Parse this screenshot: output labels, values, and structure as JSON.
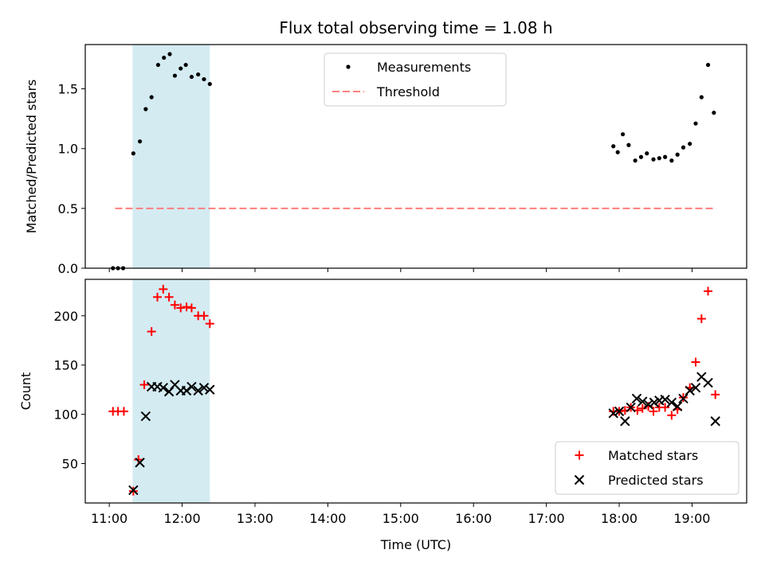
{
  "chart_data": {
    "type": "scatter",
    "title": "Flux total observing time = 1.08 h",
    "xlabel": "Time (UTC)",
    "x_ticks": [
      "11:00",
      "12:00",
      "13:00",
      "14:00",
      "15:00",
      "16:00",
      "17:00",
      "18:00",
      "19:00"
    ],
    "xlim_hours": [
      10.67,
      19.75
    ],
    "shaded_interval_hours": [
      11.32,
      12.38
    ],
    "shade_color": "#add8e6",
    "panels": [
      {
        "ylabel": "Matched/Predicted stars",
        "ylim": [
          0,
          1.87
        ],
        "y_ticks": [
          0.0,
          0.5,
          1.0,
          1.5
        ],
        "y_tick_labels": [
          "0.0",
          "0.5",
          "1.0",
          "1.5"
        ],
        "legend_position": "top-center",
        "series": [
          {
            "name": "Measurements",
            "marker": "dot",
            "color": "#000000",
            "points": [
              [
                11.05,
                0.0
              ],
              [
                11.12,
                0.0
              ],
              [
                11.19,
                0.0
              ],
              [
                11.33,
                0.96
              ],
              [
                11.42,
                1.06
              ],
              [
                11.5,
                1.33
              ],
              [
                11.58,
                1.43
              ],
              [
                11.67,
                1.7
              ],
              [
                11.75,
                1.76
              ],
              [
                11.83,
                1.79
              ],
              [
                11.9,
                1.61
              ],
              [
                11.98,
                1.67
              ],
              [
                12.05,
                1.7
              ],
              [
                12.13,
                1.6
              ],
              [
                12.22,
                1.62
              ],
              [
                12.3,
                1.58
              ],
              [
                12.38,
                1.54
              ],
              [
                17.92,
                1.02
              ],
              [
                17.98,
                0.97
              ],
              [
                18.05,
                1.12
              ],
              [
                18.13,
                1.03
              ],
              [
                18.22,
                0.9
              ],
              [
                18.3,
                0.93
              ],
              [
                18.38,
                0.96
              ],
              [
                18.47,
                0.91
              ],
              [
                18.55,
                0.92
              ],
              [
                18.63,
                0.93
              ],
              [
                18.72,
                0.9
              ],
              [
                18.8,
                0.95
              ],
              [
                18.88,
                1.01
              ],
              [
                18.97,
                1.04
              ],
              [
                19.05,
                1.21
              ],
              [
                19.13,
                1.43
              ],
              [
                19.22,
                1.7
              ],
              [
                19.3,
                1.3
              ]
            ]
          },
          {
            "name": "Threshold",
            "marker": "dashed-line",
            "color": "#ff7f7f",
            "x": [
              11.08,
              19.33
            ],
            "y": 0.5
          }
        ]
      },
      {
        "ylabel": "Count",
        "ylim": [
          10,
          237
        ],
        "y_ticks": [
          50,
          100,
          150,
          200
        ],
        "y_tick_labels": [
          "50",
          "100",
          "150",
          "200"
        ],
        "legend_position": "bottom-right",
        "series": [
          {
            "name": "Matched stars",
            "marker": "plus",
            "color": "#ff0000",
            "points": [
              [
                11.05,
                103
              ],
              [
                11.12,
                103
              ],
              [
                11.2,
                103
              ],
              [
                11.33,
                22
              ],
              [
                11.4,
                54
              ],
              [
                11.48,
                130
              ],
              [
                11.58,
                184
              ],
              [
                11.66,
                219
              ],
              [
                11.74,
                227
              ],
              [
                11.82,
                219
              ],
              [
                11.9,
                211
              ],
              [
                11.98,
                208
              ],
              [
                12.06,
                209
              ],
              [
                12.13,
                208
              ],
              [
                12.22,
                200
              ],
              [
                12.3,
                200
              ],
              [
                12.38,
                192
              ],
              [
                17.92,
                103
              ],
              [
                18.0,
                103
              ],
              [
                18.08,
                104
              ],
              [
                18.16,
                107
              ],
              [
                18.25,
                104
              ],
              [
                18.32,
                106
              ],
              [
                18.4,
                108
              ],
              [
                18.47,
                103
              ],
              [
                18.55,
                107
              ],
              [
                18.63,
                107
              ],
              [
                18.72,
                99
              ],
              [
                18.8,
                105
              ],
              [
                18.88,
                117
              ],
              [
                18.97,
                127
              ],
              [
                19.05,
                153
              ],
              [
                19.13,
                197
              ],
              [
                19.22,
                225
              ],
              [
                19.32,
                120
              ]
            ]
          },
          {
            "name": "Predicted stars",
            "marker": "x",
            "color": "#000000",
            "points": [
              [
                11.33,
                23
              ],
              [
                11.42,
                51
              ],
              [
                11.5,
                98
              ],
              [
                11.58,
                128
              ],
              [
                11.66,
                128
              ],
              [
                11.74,
                127
              ],
              [
                11.82,
                123
              ],
              [
                11.9,
                130
              ],
              [
                11.98,
                124
              ],
              [
                12.06,
                124
              ],
              [
                12.13,
                128
              ],
              [
                12.22,
                124
              ],
              [
                12.3,
                127
              ],
              [
                12.38,
                125
              ],
              [
                17.92,
                101
              ],
              [
                18.0,
                103
              ],
              [
                18.08,
                93
              ],
              [
                18.16,
                107
              ],
              [
                18.24,
                116
              ],
              [
                18.32,
                113
              ],
              [
                18.4,
                110
              ],
              [
                18.48,
                112
              ],
              [
                18.55,
                114
              ],
              [
                18.63,
                115
              ],
              [
                18.72,
                112
              ],
              [
                18.8,
                108
              ],
              [
                18.88,
                116
              ],
              [
                18.97,
                124
              ],
              [
                19.05,
                127
              ],
              [
                19.13,
                138
              ],
              [
                19.22,
                132
              ],
              [
                19.32,
                93
              ]
            ]
          }
        ]
      }
    ]
  }
}
